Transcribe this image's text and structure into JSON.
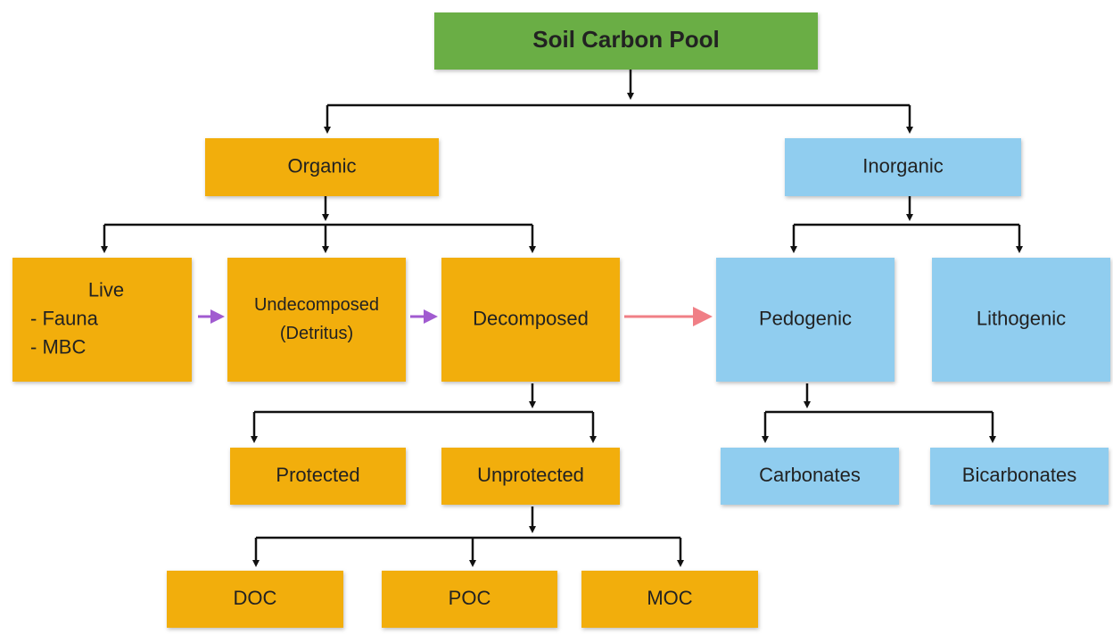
{
  "nodes": [
    {
      "lines": [
        "Soil Carbon Pool"
      ]
    },
    {
      "lines": [
        "Organic"
      ]
    },
    {
      "lines": [
        "Inorganic"
      ]
    },
    {
      "lines": [
        "Live",
        "- Fauna",
        "- MBC"
      ]
    },
    {
      "lines": [
        "Undecomposed",
        "(Detritus)"
      ]
    },
    {
      "lines": [
        "Decomposed"
      ]
    },
    {
      "lines": [
        "Pedogenic"
      ]
    },
    {
      "lines": [
        "Lithogenic"
      ]
    },
    {
      "lines": [
        "Protected"
      ]
    },
    {
      "lines": [
        "Unprotected"
      ]
    },
    {
      "lines": [
        "Carbonates"
      ]
    },
    {
      "lines": [
        "Bicarbonates"
      ]
    },
    {
      "lines": [
        "DOC"
      ]
    },
    {
      "lines": [
        "POC"
      ]
    },
    {
      "lines": [
        "MOC"
      ]
    }
  ]
}
